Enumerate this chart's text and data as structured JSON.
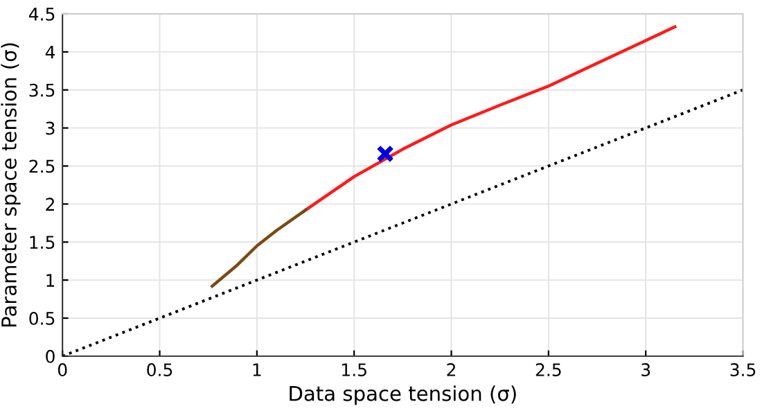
{
  "chart_data": {
    "type": "line",
    "xlabel": "Data space tension (σ)",
    "ylabel": "Parameter space tension (σ)",
    "xlim": [
      0,
      3.5
    ],
    "ylim": [
      0,
      4.5
    ],
    "xticks": [
      0,
      0.5,
      1,
      1.5,
      2,
      2.5,
      3,
      3.5
    ],
    "yticks": [
      0,
      0.5,
      1,
      1.5,
      2,
      2.5,
      3,
      3.5,
      4,
      4.5
    ],
    "grid": true,
    "series": [
      {
        "color": "#000000",
        "line_style": "dotted",
        "x": [
          0,
          3.5
        ],
        "values": [
          0,
          3.5
        ]
      },
      {
        "color": "#ff1a1a",
        "line_style": "solid",
        "x": [
          1.25,
          1.5,
          1.75,
          2,
          2.25,
          2.5,
          2.75,
          3,
          3.15
        ],
        "values": [
          1.92,
          2.36,
          2.72,
          3.04,
          3.3,
          3.55,
          3.85,
          4.15,
          4.33
        ]
      },
      {
        "color": "#7a4a14",
        "line_style": "solid",
        "x": [
          0.77,
          0.9,
          1,
          1.1,
          1.25
        ],
        "values": [
          0.92,
          1.2,
          1.45,
          1.65,
          1.92
        ]
      },
      {
        "type": "scatter",
        "marker": "cross",
        "color": "#0000e0",
        "x": [
          1.66
        ],
        "values": [
          2.66
        ]
      }
    ]
  }
}
